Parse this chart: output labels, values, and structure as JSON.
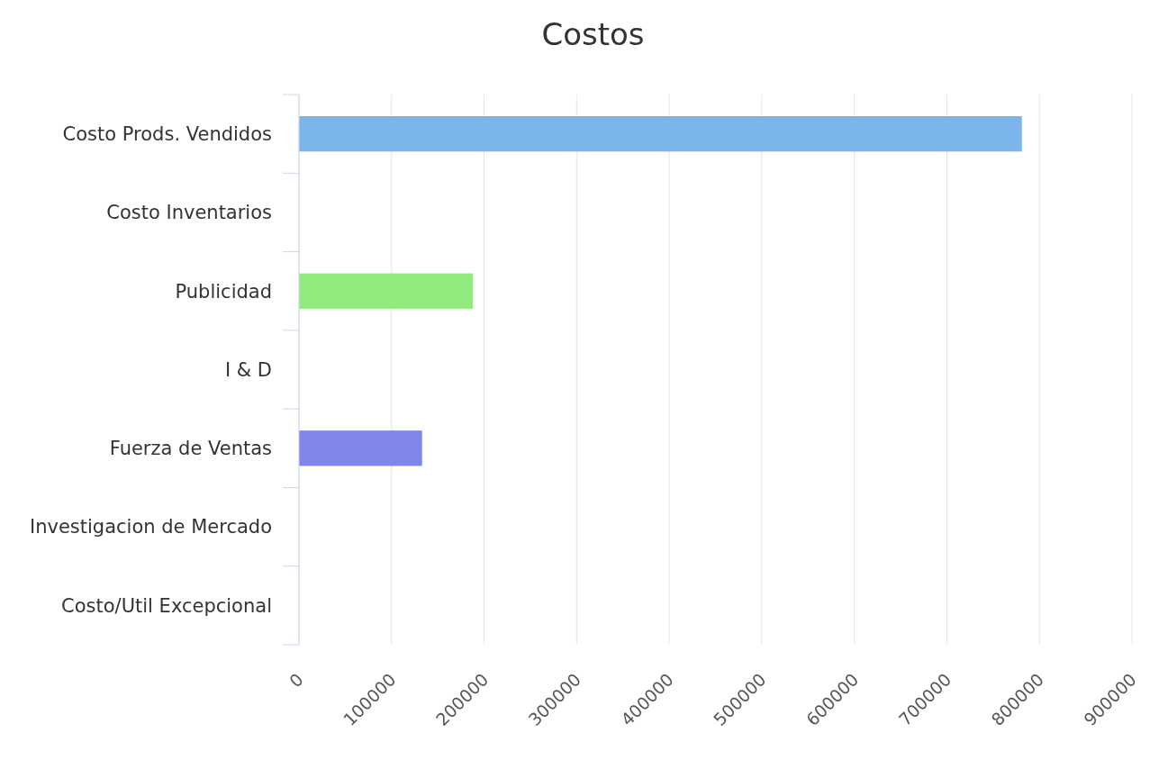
{
  "chart_data": {
    "type": "bar",
    "orientation": "horizontal",
    "title": "Costos",
    "categories": [
      "Costo Prods. Vendidos",
      "Costo Inventarios",
      "Publicidad",
      "I & D",
      "Fuerza de Ventas",
      "Investigacion de Mercado",
      "Costo/Util Excepcional"
    ],
    "values": [
      781000,
      null,
      188000,
      null,
      133000,
      null,
      null
    ],
    "colors": [
      "#7cb5ec",
      null,
      "#90ed7d",
      null,
      "#8085e9",
      null,
      null
    ],
    "xlim": [
      0,
      900000
    ],
    "xticks": [
      0,
      100000,
      200000,
      300000,
      400000,
      500000,
      600000,
      700000,
      800000,
      900000
    ],
    "grid": "x"
  }
}
